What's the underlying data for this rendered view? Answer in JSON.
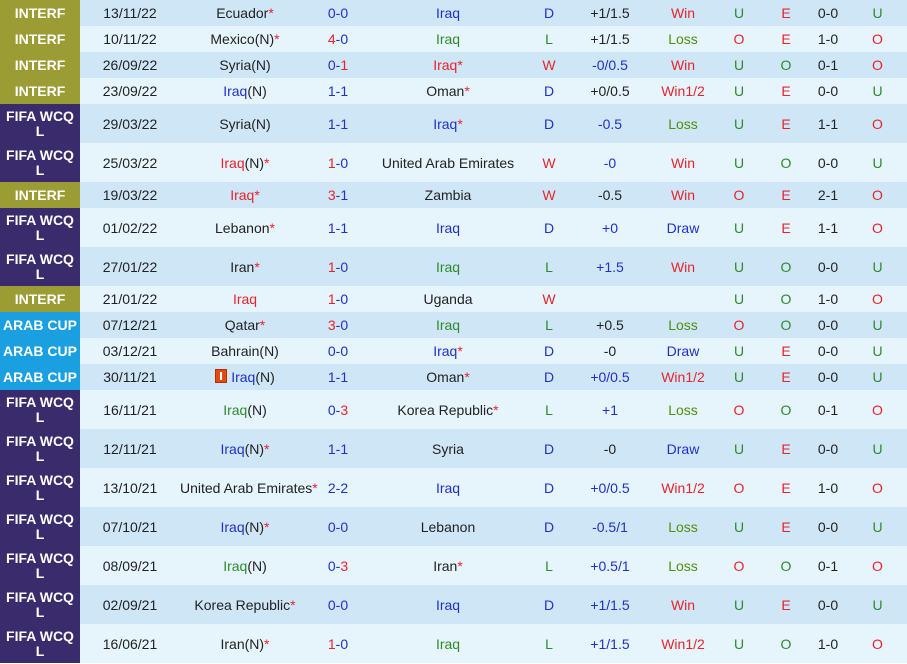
{
  "colors": {
    "interf": "#9c9c35",
    "wcq": "#3a2c6c",
    "arab": "#1aa0e0",
    "win": "#e8232b",
    "draw": "#2030c8",
    "loss": "#2e8a2e"
  },
  "rows": [
    {
      "league": "INTERF",
      "type": "INTERF",
      "date": "13/11/22",
      "home": "Ecuador",
      "hc": "k",
      "hs": true,
      "sh": "0",
      "sa": "0",
      "win": "",
      "away": "Iraq",
      "ac": "b",
      "as": false,
      "res": "D",
      "hcap": "+1/1.5",
      "hcc": "k",
      "ah": "Win",
      "ou": "U",
      "eo": "E",
      "ht": "0-0",
      "ou2": "U"
    },
    {
      "league": "INTERF",
      "type": "INTERF",
      "date": "10/11/22",
      "home": "Mexico(N)",
      "hc": "k",
      "hs": true,
      "sh": "4",
      "sa": "0",
      "win": "h",
      "away": "Iraq",
      "ac": "g",
      "as": false,
      "res": "L",
      "hcap": "+1/1.5",
      "hcc": "k",
      "ah": "Loss",
      "ou": "O",
      "eo": "E",
      "ht": "1-0",
      "ou2": "O"
    },
    {
      "league": "INTERF",
      "type": "INTERF",
      "date": "26/09/22",
      "home": "Syria(N)",
      "hc": "k",
      "hs": false,
      "sh": "0",
      "sa": "1",
      "win": "a",
      "away": "Iraq",
      "ac": "r",
      "as": true,
      "res": "W",
      "hcap": "-0/0.5",
      "hcc": "b",
      "ah": "Win",
      "ou": "U",
      "eo": "O",
      "ht": "0-1",
      "ou2": "O"
    },
    {
      "league": "INTERF",
      "type": "INTERF",
      "date": "23/09/22",
      "home": "Iraq(N)",
      "hc": "b",
      "hs": false,
      "sh": "1",
      "sa": "1",
      "win": "",
      "away": "Oman",
      "ac": "k",
      "as": true,
      "res": "D",
      "hcap": "+0/0.5",
      "hcc": "k",
      "ah": "Win1/2",
      "ou": "U",
      "eo": "E",
      "ht": "0-0",
      "ou2": "U"
    },
    {
      "league": "FIFA WCQ L",
      "type": "WCQ",
      "date": "29/03/22",
      "home": "Syria(N)",
      "hc": "k",
      "hs": false,
      "sh": "1",
      "sa": "1",
      "win": "",
      "away": "Iraq",
      "ac": "b",
      "as": true,
      "res": "D",
      "hcap": "-0.5",
      "hcc": "b",
      "ah": "Loss",
      "ou": "U",
      "eo": "E",
      "ht": "1-1",
      "ou2": "O"
    },
    {
      "league": "FIFA WCQ L",
      "type": "WCQ",
      "date": "25/03/22",
      "home": "Iraq(N)",
      "hc": "r",
      "hs": true,
      "sh": "1",
      "sa": "0",
      "win": "h",
      "away": "United Arab Emirates",
      "ac": "k",
      "as": false,
      "res": "W",
      "hcap": "-0",
      "hcc": "b",
      "ah": "Win",
      "ou": "U",
      "eo": "O",
      "ht": "0-0",
      "ou2": "U"
    },
    {
      "league": "INTERF",
      "type": "INTERF",
      "date": "19/03/22",
      "home": "Iraq",
      "hc": "r",
      "hs": true,
      "sh": "3",
      "sa": "1",
      "win": "h",
      "away": "Zambia",
      "ac": "k",
      "as": false,
      "res": "W",
      "hcap": "-0.5",
      "hcc": "k",
      "ah": "Win",
      "ou": "O",
      "eo": "E",
      "ht": "2-1",
      "ou2": "O"
    },
    {
      "league": "FIFA WCQ L",
      "type": "WCQ",
      "date": "01/02/22",
      "home": "Lebanon",
      "hc": "k",
      "hs": true,
      "sh": "1",
      "sa": "1",
      "win": "",
      "away": "Iraq",
      "ac": "b",
      "as": false,
      "res": "D",
      "hcap": "+0",
      "hcc": "b",
      "ah": "Draw",
      "ou": "U",
      "eo": "E",
      "ht": "1-1",
      "ou2": "O"
    },
    {
      "league": "FIFA WCQ L",
      "type": "WCQ",
      "date": "27/01/22",
      "home": "Iran",
      "hc": "k",
      "hs": true,
      "sh": "1",
      "sa": "0",
      "win": "h",
      "away": "Iraq",
      "ac": "g",
      "as": false,
      "res": "L",
      "hcap": "+1.5",
      "hcc": "b",
      "ah": "Win",
      "ou": "U",
      "eo": "O",
      "ht": "0-0",
      "ou2": "U"
    },
    {
      "league": "INTERF",
      "type": "INTERF",
      "date": "21/01/22",
      "home": "Iraq",
      "hc": "r",
      "hs": false,
      "sh": "1",
      "sa": "0",
      "win": "h",
      "away": "Uganda",
      "ac": "k",
      "as": false,
      "res": "W",
      "hcap": "",
      "hcc": "k",
      "ah": "",
      "ou": "U",
      "eo": "O",
      "ht": "1-0",
      "ou2": "O"
    },
    {
      "league": "ARAB CUP",
      "type": "ARAB",
      "date": "07/12/21",
      "home": "Qatar",
      "hc": "k",
      "hs": true,
      "sh": "3",
      "sa": "0",
      "win": "h",
      "away": "Iraq",
      "ac": "g",
      "as": false,
      "res": "L",
      "hcap": "+0.5",
      "hcc": "k",
      "ah": "Loss",
      "ou": "O",
      "eo": "O",
      "ht": "0-0",
      "ou2": "U"
    },
    {
      "league": "ARAB CUP",
      "type": "ARAB",
      "date": "03/12/21",
      "home": "Bahrain(N)",
      "hc": "k",
      "hs": false,
      "sh": "0",
      "sa": "0",
      "win": "",
      "away": "Iraq",
      "ac": "b",
      "as": true,
      "res": "D",
      "hcap": "-0",
      "hcc": "k",
      "ah": "Draw",
      "ou": "U",
      "eo": "E",
      "ht": "0-0",
      "ou2": "U"
    },
    {
      "league": "ARAB CUP",
      "type": "ARAB",
      "date": "30/11/21",
      "flag": true,
      "home": "Iraq(N)",
      "hc": "b",
      "hs": false,
      "sh": "1",
      "sa": "1",
      "win": "",
      "away": "Oman",
      "ac": "k",
      "as": true,
      "res": "D",
      "hcap": "+0/0.5",
      "hcc": "b",
      "ah": "Win1/2",
      "ou": "U",
      "eo": "E",
      "ht": "0-0",
      "ou2": "U"
    },
    {
      "league": "FIFA WCQ L",
      "type": "WCQ",
      "date": "16/11/21",
      "home": "Iraq(N)",
      "hc": "g",
      "hs": false,
      "sh": "0",
      "sa": "3",
      "win": "a",
      "away": "Korea Republic",
      "ac": "k",
      "as": true,
      "res": "L",
      "hcap": "+1",
      "hcc": "b",
      "ah": "Loss",
      "ou": "O",
      "eo": "O",
      "ht": "0-1",
      "ou2": "O"
    },
    {
      "league": "FIFA WCQ L",
      "type": "WCQ",
      "date": "12/11/21",
      "home": "Iraq(N)",
      "hc": "b",
      "hs": true,
      "sh": "1",
      "sa": "1",
      "win": "",
      "away": "Syria",
      "ac": "k",
      "as": false,
      "res": "D",
      "hcap": "-0",
      "hcc": "k",
      "ah": "Draw",
      "ou": "U",
      "eo": "E",
      "ht": "0-0",
      "ou2": "U"
    },
    {
      "league": "FIFA WCQ L",
      "type": "WCQ",
      "date": "13/10/21",
      "home": "United Arab Emirates",
      "hc": "k",
      "hs": true,
      "sh": "2",
      "sa": "2",
      "win": "",
      "away": "Iraq",
      "ac": "b",
      "as": false,
      "res": "D",
      "hcap": "+0/0.5",
      "hcc": "b",
      "ah": "Win1/2",
      "ou": "O",
      "eo": "E",
      "ht": "1-0",
      "ou2": "O"
    },
    {
      "league": "FIFA WCQ L",
      "type": "WCQ",
      "date": "07/10/21",
      "home": "Iraq(N)",
      "hc": "b",
      "hs": true,
      "sh": "0",
      "sa": "0",
      "win": "",
      "away": "Lebanon",
      "ac": "k",
      "as": false,
      "res": "D",
      "hcap": "-0.5/1",
      "hcc": "b",
      "ah": "Loss",
      "ou": "U",
      "eo": "E",
      "ht": "0-0",
      "ou2": "U"
    },
    {
      "league": "FIFA WCQ L",
      "type": "WCQ",
      "date": "08/09/21",
      "home": "Iraq(N)",
      "hc": "g",
      "hs": false,
      "sh": "0",
      "sa": "3",
      "win": "a",
      "away": "Iran",
      "ac": "k",
      "as": true,
      "res": "L",
      "hcap": "+0.5/1",
      "hcc": "b",
      "ah": "Loss",
      "ou": "O",
      "eo": "O",
      "ht": "0-1",
      "ou2": "O"
    },
    {
      "league": "FIFA WCQ L",
      "type": "WCQ",
      "date": "02/09/21",
      "home": "Korea Republic",
      "hc": "k",
      "hs": true,
      "sh": "0",
      "sa": "0",
      "win": "",
      "away": "Iraq",
      "ac": "b",
      "as": false,
      "res": "D",
      "hcap": "+1/1.5",
      "hcc": "b",
      "ah": "Win",
      "ou": "U",
      "eo": "E",
      "ht": "0-0",
      "ou2": "U"
    },
    {
      "league": "FIFA WCQ L",
      "type": "WCQ",
      "date": "16/06/21",
      "home": "Iran(N)",
      "hc": "k",
      "hs": true,
      "sh": "1",
      "sa": "0",
      "win": "h",
      "away": "Iraq",
      "ac": "g",
      "as": false,
      "res": "L",
      "hcap": "+1/1.5",
      "hcc": "b",
      "ah": "Win1/2",
      "ou": "U",
      "eo": "O",
      "ht": "1-0",
      "ou2": "O"
    }
  ]
}
